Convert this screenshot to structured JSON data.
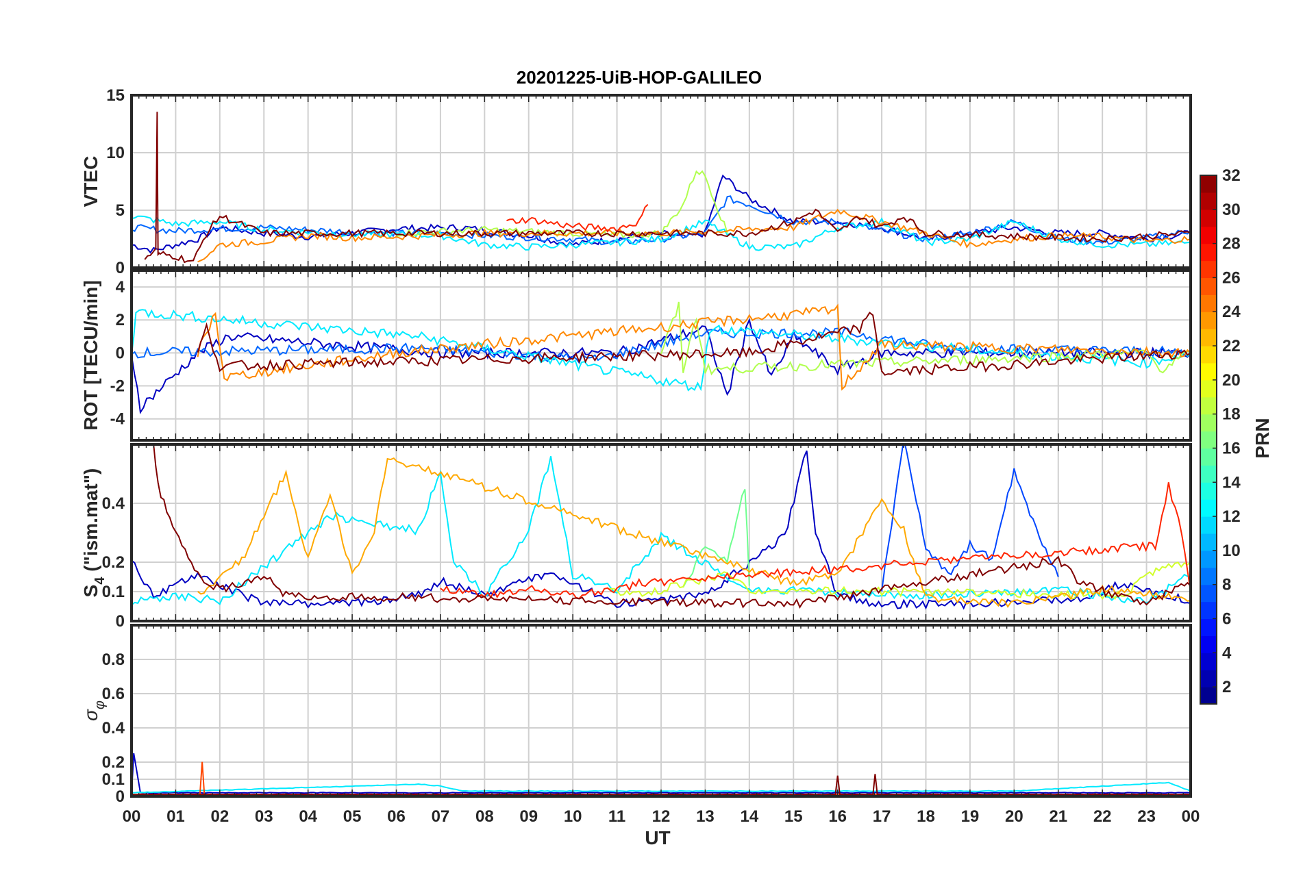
{
  "title": "20201225-UiB-HOP-GALILEO",
  "chart_data": [
    {
      "type": "line",
      "panel": "VTEC",
      "ylabel": "VTEC",
      "ylim": [
        0,
        15
      ],
      "yticks": [
        "0",
        "5",
        "10",
        "15"
      ],
      "yticks_val": [
        0,
        5,
        10,
        15
      ],
      "series": [
        {
          "name": "PRN 3",
          "prn": 3,
          "x": [
            0,
            0.5,
            1.5,
            2,
            3,
            4,
            5,
            6,
            7.5,
            9,
            10,
            11,
            12,
            12.5,
            13,
            13.4,
            14,
            15,
            16,
            17,
            18,
            19,
            20,
            21,
            22,
            23,
            24
          ],
          "y": [
            2,
            1.5,
            2.5,
            3.5,
            3,
            2.7,
            3,
            3.4,
            3.5,
            2.8,
            2,
            2.5,
            3,
            2.6,
            3,
            8,
            6,
            4,
            4,
            3.5,
            2.5,
            3,
            3.5,
            3,
            3,
            2.5,
            3
          ]
        },
        {
          "name": "PRN 8",
          "prn": 8,
          "x": [
            0,
            1,
            2,
            3,
            4,
            5,
            6,
            7,
            8,
            10,
            11,
            12,
            13,
            13.5,
            14,
            15,
            16,
            17,
            18,
            19,
            20,
            21,
            22,
            23,
            24
          ],
          "y": [
            3.5,
            3.2,
            3.4,
            3.5,
            3.3,
            3.1,
            3,
            3,
            2.8,
            2.5,
            2.2,
            2.5,
            3,
            6,
            5.5,
            4,
            4,
            3.2,
            2.5,
            3,
            4,
            2.5,
            2.2,
            2.6,
            3.2
          ]
        },
        {
          "name": "PRN 12",
          "prn": 12,
          "x": [
            0,
            1,
            2,
            3,
            4,
            5,
            6,
            7,
            8,
            9,
            10,
            11,
            12,
            13,
            14,
            15,
            16,
            17,
            18,
            19,
            20,
            21,
            22,
            23,
            24
          ],
          "y": [
            4.5,
            3.8,
            4,
            3.3,
            3.1,
            2.9,
            2.9,
            2.8,
            2,
            1.8,
            2,
            2.2,
            2.5,
            4,
            1.8,
            1.8,
            3.5,
            4,
            2.2,
            2.5,
            4,
            2.5,
            2,
            2,
            2.2
          ]
        },
        {
          "name": "PRN 18",
          "prn": 18,
          "x": [
            6,
            8,
            10,
            11,
            12,
            12.5,
            12.8,
            13,
            13.5
          ],
          "y": [
            3,
            3.3,
            3,
            2.8,
            3,
            5.5,
            8.5,
            8,
            3
          ]
        },
        {
          "name": "PRN 24",
          "prn": 24,
          "x": [
            1.5,
            2,
            3,
            4,
            5,
            6,
            8,
            10,
            12,
            15,
            16,
            17,
            18,
            19,
            20,
            21,
            22,
            23,
            24
          ],
          "y": [
            0.5,
            2,
            2.3,
            2.8,
            2.6,
            2.7,
            3,
            3,
            3,
            3.5,
            5,
            4,
            3,
            2,
            2.5,
            2.8,
            2.7,
            2.3,
            2.5
          ]
        },
        {
          "name": "PRN 27",
          "prn": 27,
          "x": [
            8.5,
            9,
            10,
            11,
            11.5,
            11.7
          ],
          "y": [
            4,
            4.2,
            3.6,
            3.4,
            4,
            5.5
          ]
        },
        {
          "name": "PRN 32",
          "prn": 32,
          "x": [
            0.3,
            0.55,
            0.58,
            0.6,
            0.65,
            1,
            1.4,
            1.7,
            2,
            3,
            14,
            15,
            15.5,
            16,
            16.5,
            17,
            17.5,
            18,
            22,
            24
          ],
          "y": [
            1,
            1.5,
            13.5,
            1,
            1.2,
            1,
            0.5,
            3,
            4.5,
            3,
            3,
            4,
            5,
            3,
            4.5,
            3.5,
            4.5,
            3,
            2.5,
            3
          ]
        }
      ]
    },
    {
      "type": "line",
      "panel": "ROT",
      "ylabel": "ROT [TECU/min]",
      "ylim": [
        -5.3,
        5
      ],
      "yticks": [
        "-4",
        "-2",
        "0",
        "2",
        "4"
      ],
      "yticks_val": [
        -4,
        -2,
        0,
        2,
        4
      ],
      "series": [
        {
          "name": "PRN 3",
          "prn": 3,
          "x": [
            0,
            0.2,
            1.5,
            2.2,
            7,
            11,
            13,
            13.5,
            14,
            14.5,
            15,
            16,
            17,
            24
          ],
          "y": [
            0,
            -3.3,
            0,
            1,
            0,
            0,
            1.5,
            -2.6,
            2,
            -1.5,
            1,
            -1,
            0,
            0
          ]
        },
        {
          "name": "PRN 8",
          "prn": 8,
          "x": [
            0,
            6.5,
            10.5,
            13,
            16.3,
            18.5,
            23,
            24
          ],
          "y": [
            0,
            0.3,
            -0.4,
            1.2,
            1.2,
            0.3,
            0.1,
            0
          ]
        },
        {
          "name": "PRN 12",
          "prn": 12,
          "x": [
            0,
            0.1,
            6.5,
            12.9,
            13.1,
            20,
            23,
            24
          ],
          "y": [
            0,
            2.5,
            1,
            -2.1,
            1.5,
            0,
            -0.6,
            0
          ]
        },
        {
          "name": "PRN 18",
          "prn": 18,
          "x": [
            12,
            12.4,
            12.5,
            12.8,
            13,
            23,
            23.3,
            24
          ],
          "y": [
            0,
            2.8,
            -1,
            2.2,
            -1,
            0,
            -1,
            0
          ]
        },
        {
          "name": "PRN 24",
          "prn": 24,
          "x": [
            1.5,
            1.9,
            2.1,
            6,
            16,
            16.1,
            17,
            24
          ],
          "y": [
            0,
            2.4,
            -1.5,
            0,
            2.6,
            -2,
            0.5,
            0
          ]
        },
        {
          "name": "PRN 32",
          "prn": 32,
          "x": [
            1.5,
            1.7,
            2,
            14,
            16.5,
            16.8,
            17,
            24
          ],
          "y": [
            0,
            1.5,
            -0.8,
            0,
            1.5,
            2.4,
            -1.2,
            0
          ]
        }
      ]
    },
    {
      "type": "line",
      "panel": "S4",
      "ylabel": "S4 (\"ism.mat\")",
      "ylabel_main": "S",
      "ylabel_sub": "4",
      "ylabel_rest": " (\"ism.mat\")",
      "ylim": [
        0,
        0.6
      ],
      "yticks": [
        "0",
        "0.1",
        "0.2",
        "0.4"
      ],
      "yticks_val": [
        0,
        0.1,
        0.2,
        0.4
      ],
      "series": [
        {
          "name": "PRN 3",
          "prn": 3,
          "x": [
            0,
            0.5,
            1.5,
            3,
            5,
            6.5,
            7,
            8,
            9.5,
            11,
            13,
            14.8,
            15.3,
            15.5,
            16,
            17,
            19,
            21.5,
            22.5,
            24
          ],
          "y": [
            0.2,
            0.08,
            0.15,
            0.05,
            0.05,
            0.08,
            0.13,
            0.08,
            0.16,
            0.05,
            0.08,
            0.28,
            0.58,
            0.3,
            0.08,
            0.05,
            0.05,
            0.07,
            0.12,
            0.06
          ]
        },
        {
          "name": "PRN 7",
          "prn": 7,
          "x": [
            17,
            17.3,
            17.5,
            18,
            18.5,
            19,
            19.5,
            20,
            20.5,
            21
          ],
          "y": [
            0.1,
            0.4,
            0.6,
            0.25,
            0.15,
            0.25,
            0.2,
            0.5,
            0.3,
            0.15
          ]
        },
        {
          "name": "PRN 12",
          "prn": 12,
          "x": [
            0,
            1,
            2,
            4.5,
            6.5,
            7,
            7.3,
            8,
            9,
            9.5,
            10,
            11,
            12,
            14,
            18,
            21,
            23,
            24
          ],
          "y": [
            0.06,
            0.08,
            0.06,
            0.35,
            0.3,
            0.5,
            0.2,
            0.08,
            0.3,
            0.55,
            0.15,
            0.1,
            0.28,
            0.1,
            0.08,
            0.1,
            0.06,
            0.15
          ]
        },
        {
          "name": "PRN 16",
          "prn": 16,
          "x": [
            12.5,
            13,
            13.5,
            13.9,
            14
          ],
          "y": [
            0.1,
            0.25,
            0.2,
            0.45,
            0.12
          ]
        },
        {
          "name": "PRN 19",
          "prn": 19,
          "x": [
            10.8,
            11.5,
            12.5,
            13.5,
            14,
            22.5,
            23,
            24
          ],
          "y": [
            0.1,
            0.08,
            0.12,
            0.15,
            0.1,
            0.08,
            0.15,
            0.2
          ]
        },
        {
          "name": "PRN 23",
          "prn": 23,
          "x": [
            1.5,
            2.5,
            3.5,
            4,
            4.5,
            5,
            5.5,
            5.8,
            15,
            16,
            17,
            17.5,
            18,
            20,
            22,
            24
          ],
          "y": [
            0.08,
            0.2,
            0.5,
            0.2,
            0.42,
            0.15,
            0.3,
            0.55,
            0.12,
            0.15,
            0.4,
            0.3,
            0.07,
            0.05,
            0.1,
            0.07
          ]
        },
        {
          "name": "PRN 27",
          "prn": 27,
          "x": [
            7,
            8,
            9,
            10,
            11,
            11.5,
            23.2,
            23.5,
            23.8,
            24
          ],
          "y": [
            0.1,
            0.08,
            0.1,
            0.08,
            0.1,
            0.12,
            0.25,
            0.45,
            0.3,
            0.1
          ]
        },
        {
          "name": "PRN 32",
          "prn": 32,
          "x": [
            0.5,
            0.6,
            1,
            1.5,
            2,
            3,
            3.5,
            15,
            21,
            21.5,
            22.5,
            23,
            24
          ],
          "y": [
            0.6,
            0.45,
            0.3,
            0.15,
            0.1,
            0.15,
            0.08,
            0.05,
            0.2,
            0.12,
            0.07,
            0.06,
            0.12
          ]
        }
      ]
    },
    {
      "type": "line",
      "panel": "sigma_phi",
      "ylabel": "σ φ",
      "ylabel_main": "σ",
      "ylabel_sub": "φ",
      "ylim": [
        0,
        1
      ],
      "yticks": [
        "0",
        "0.1",
        "0.2",
        "0.4",
        "0.6",
        "0.8"
      ],
      "yticks_val": [
        0,
        0.1,
        0.2,
        0.4,
        0.6,
        0.8
      ],
      "series": [
        {
          "name": "PRN 3",
          "prn": 3,
          "x": [
            0,
            0.05,
            0.2,
            24
          ],
          "y": [
            0.02,
            0.25,
            0.02,
            0.02
          ]
        },
        {
          "name": "PRN 12",
          "prn": 12,
          "x": [
            0,
            6.5,
            7,
            7.5,
            20,
            23.5,
            24
          ],
          "y": [
            0.02,
            0.07,
            0.06,
            0.03,
            0.03,
            0.08,
            0.03
          ]
        },
        {
          "name": "PRN 26",
          "prn": 26,
          "x": [
            0,
            1.55,
            1.6,
            1.65,
            24
          ],
          "y": [
            0.01,
            0.01,
            0.2,
            0.01,
            0.01
          ]
        },
        {
          "name": "PRN 32",
          "prn": 32,
          "x": [
            0,
            15.95,
            16,
            16.05,
            16.8,
            16.85,
            16.9,
            24
          ],
          "y": [
            0.01,
            0.01,
            0.12,
            0.01,
            0.01,
            0.13,
            0.01,
            0.01
          ]
        }
      ]
    }
  ],
  "xaxis": {
    "label": "UT",
    "xlim": [
      0,
      24
    ],
    "ticks": [
      "00",
      "01",
      "02",
      "03",
      "04",
      "05",
      "06",
      "07",
      "08",
      "09",
      "10",
      "11",
      "12",
      "13",
      "14",
      "15",
      "16",
      "17",
      "18",
      "19",
      "20",
      "21",
      "22",
      "23",
      "00"
    ]
  },
  "colorbar": {
    "label": "PRN",
    "range": [
      1,
      32
    ],
    "ticks": [
      "2",
      "4",
      "6",
      "8",
      "10",
      "12",
      "14",
      "16",
      "18",
      "20",
      "22",
      "24",
      "26",
      "28",
      "30",
      "32"
    ],
    "ticks_val": [
      2,
      4,
      6,
      8,
      10,
      12,
      14,
      16,
      18,
      20,
      22,
      24,
      26,
      28,
      30,
      32
    ]
  }
}
